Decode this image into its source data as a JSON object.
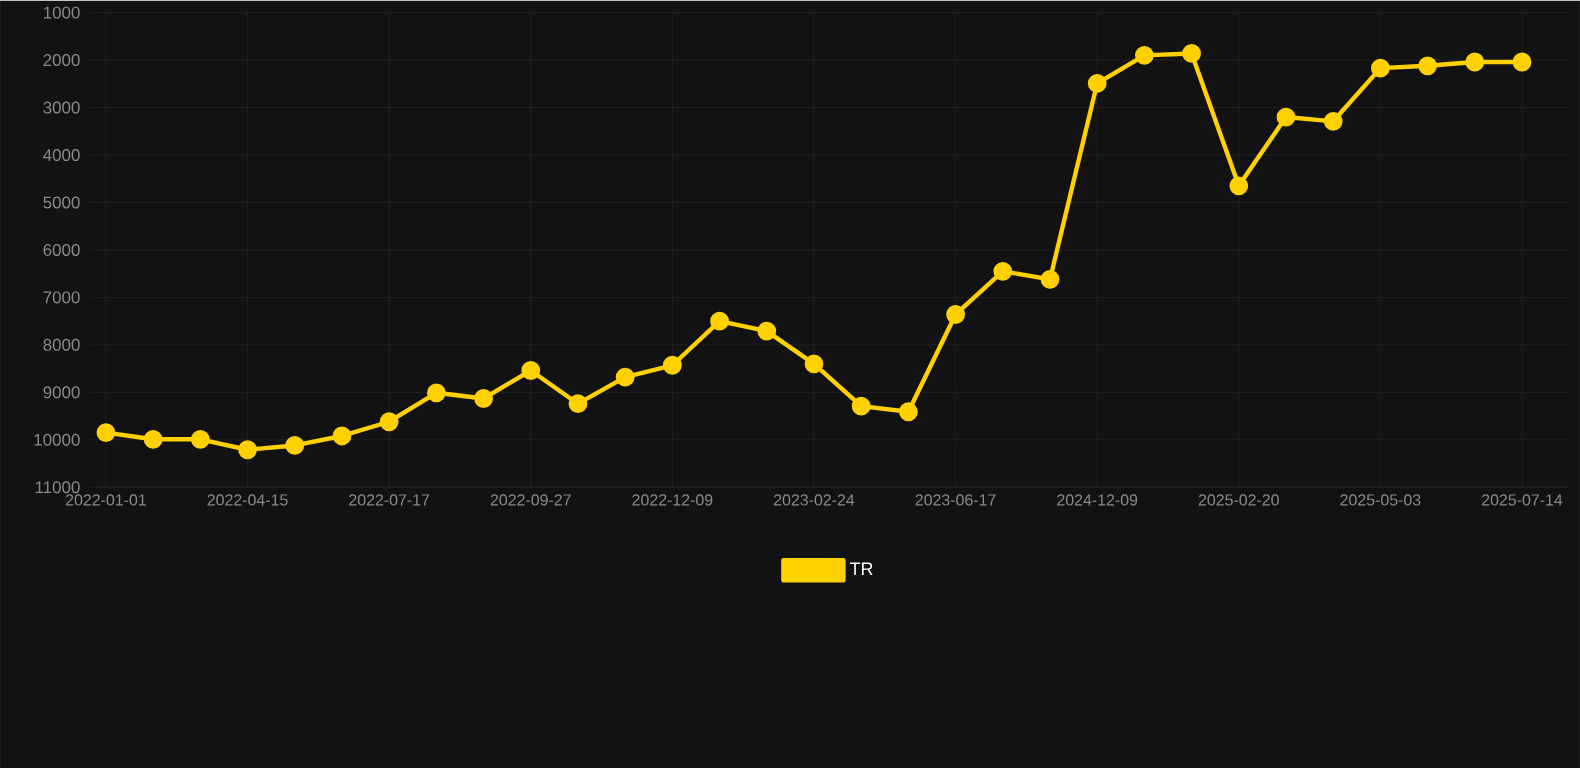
{
  "chart_data": {
    "type": "line",
    "categories": [
      "2022-01-01",
      null,
      null,
      "2022-04-15",
      null,
      null,
      "2022-07-17",
      null,
      null,
      "2022-09-27",
      null,
      null,
      "2022-12-09",
      null,
      null,
      "2023-02-24",
      null,
      null,
      "2023-06-17",
      null,
      null,
      "2024-12-09",
      null,
      null,
      "2025-02-20",
      null,
      null,
      "2025-05-03",
      null,
      null,
      "2025-07-14"
    ],
    "series": [
      {
        "name": "TR",
        "color": "#ffd100",
        "values": [
          9850,
          9990,
          9990,
          10210,
          10120,
          9920,
          9620,
          9010,
          9130,
          8540,
          9240,
          8680,
          8430,
          7500,
          7710,
          8400,
          9290,
          9410,
          7360,
          6450,
          6620,
          2490,
          1900,
          1860,
          4650,
          3200,
          3290,
          2170,
          2120,
          2040,
          2040
        ]
      }
    ],
    "ylim": [
      11000,
      1000
    ],
    "yticks": [
      1000,
      2000,
      3000,
      4000,
      5000,
      6000,
      7000,
      8000,
      9000,
      10000,
      11000
    ],
    "grid": true,
    "legend": "bottom",
    "marker": "circle",
    "line_style": "solid"
  }
}
